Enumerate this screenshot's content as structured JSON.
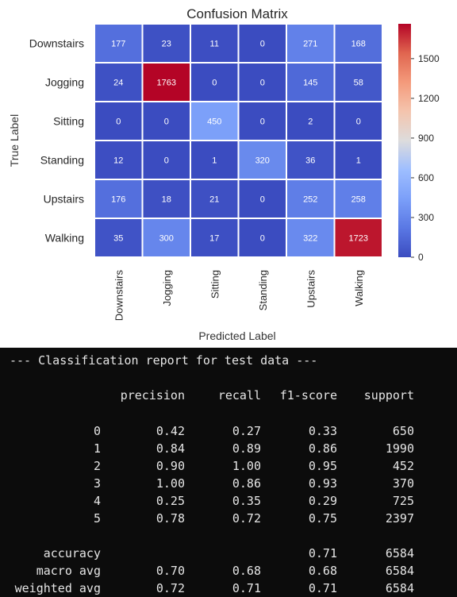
{
  "chart_data": {
    "type": "heatmap",
    "title": "Confusion Matrix",
    "xlabel": "Predicted Label",
    "ylabel": "True Label",
    "x_labels": [
      "Downstairs",
      "Jogging",
      "Sitting",
      "Standing",
      "Upstairs",
      "Walking"
    ],
    "y_labels": [
      "Downstairs",
      "Jogging",
      "Sitting",
      "Standing",
      "Upstairs",
      "Walking"
    ],
    "values": [
      [
        177,
        23,
        11,
        0,
        271,
        168
      ],
      [
        24,
        1763,
        0,
        0,
        145,
        58
      ],
      [
        0,
        0,
        450,
        0,
        2,
        0
      ],
      [
        12,
        0,
        1,
        320,
        36,
        1
      ],
      [
        176,
        18,
        21,
        0,
        252,
        258
      ],
      [
        35,
        300,
        17,
        0,
        322,
        1723
      ]
    ],
    "colorscale": "coolwarm",
    "vmin": 0,
    "vmax": 1763,
    "colorbar_ticks": [
      "0",
      "300",
      "600",
      "900",
      "1200",
      "1500"
    ]
  },
  "report": {
    "heading": "--- Classification report for test data ---",
    "columns": [
      "precision",
      "recall",
      "f1-score",
      "support"
    ],
    "rows": [
      {
        "label": "0",
        "precision": "0.42",
        "recall": "0.27",
        "f1": "0.33",
        "support": "650"
      },
      {
        "label": "1",
        "precision": "0.84",
        "recall": "0.89",
        "f1": "0.86",
        "support": "1990"
      },
      {
        "label": "2",
        "precision": "0.90",
        "recall": "1.00",
        "f1": "0.95",
        "support": "452"
      },
      {
        "label": "3",
        "precision": "1.00",
        "recall": "0.86",
        "f1": "0.93",
        "support": "370"
      },
      {
        "label": "4",
        "precision": "0.25",
        "recall": "0.35",
        "f1": "0.29",
        "support": "725"
      },
      {
        "label": "5",
        "precision": "0.78",
        "recall": "0.72",
        "f1": "0.75",
        "support": "2397"
      }
    ],
    "summary": [
      {
        "label": "accuracy",
        "precision": "",
        "recall": "",
        "f1": "0.71",
        "support": "6584"
      },
      {
        "label": "macro avg",
        "precision": "0.70",
        "recall": "0.68",
        "f1": "0.68",
        "support": "6584"
      },
      {
        "label": "weighted avg",
        "precision": "0.72",
        "recall": "0.71",
        "f1": "0.71",
        "support": "6584"
      }
    ]
  }
}
